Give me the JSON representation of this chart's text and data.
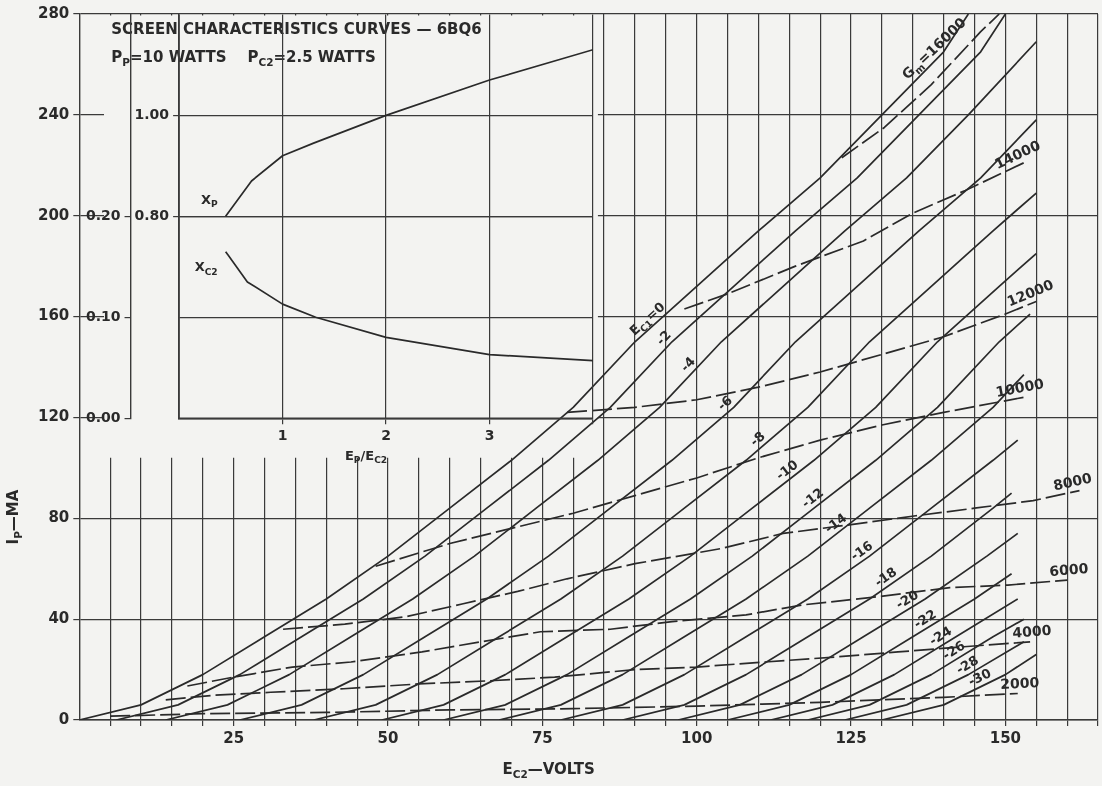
{
  "chart_data": [
    {
      "type": "line",
      "title": "SCREEN CHARACTERISTICS CURVES — 6BQ6",
      "subtitle": "P$_{P}$=10 WATTS    P$_{C2}$=2.5 WATTS",
      "xlabel": "E$_{C2}$—VOLTS",
      "ylabel": "I$_{P}$—MA",
      "xlim": [
        0,
        165
      ],
      "ylim": [
        0,
        280
      ],
      "xticks": [
        {
          "value": 5,
          "label": null
        },
        {
          "value": 10,
          "label": null
        },
        {
          "value": 15,
          "label": null
        },
        {
          "value": 20,
          "label": null
        },
        25,
        {
          "value": 30,
          "label": null
        },
        {
          "value": 35,
          "label": null
        },
        {
          "value": 40,
          "label": null
        },
        {
          "value": 45,
          "label": null
        },
        50,
        {
          "value": 55,
          "label": null
        },
        {
          "value": 60,
          "label": null
        },
        {
          "value": 65,
          "label": null
        },
        {
          "value": 70,
          "label": null
        },
        75,
        {
          "value": 80,
          "label": null
        },
        {
          "value": 85,
          "label": null
        },
        {
          "value": 90,
          "label": null
        },
        {
          "value": 95,
          "label": null
        },
        100,
        {
          "value": 105,
          "label": null
        },
        {
          "value": 110,
          "label": null
        },
        {
          "value": 115,
          "label": null
        },
        {
          "value": 120,
          "label": null
        },
        125,
        {
          "value": 130,
          "label": null
        },
        {
          "value": 135,
          "label": null
        },
        {
          "value": 140,
          "label": null
        },
        {
          "value": 145,
          "label": null
        },
        150,
        {
          "value": 155,
          "label": null
        },
        {
          "value": 160,
          "label": null
        },
        {
          "value": 165,
          "label": null
        }
      ],
      "yticks": [
        0,
        40,
        80,
        120,
        160,
        200,
        240,
        280
      ],
      "grid": true,
      "legend": false,
      "marker": "none",
      "series": [
        {
          "name": "E$_{C1}$=0",
          "color": "#2a2a2a",
          "x": [
            0,
            10,
            20,
            30,
            40,
            50,
            60,
            70,
            80,
            90,
            100,
            110,
            120,
            130,
            140,
            144
          ],
          "values": [
            0,
            6,
            18,
            33,
            48,
            65,
            84,
            103,
            124,
            150,
            172,
            194,
            215,
            240,
            265,
            280
          ]
        },
        {
          "name": "-2",
          "color": "#2a2a2a",
          "x": [
            6,
            16,
            26,
            36,
            46,
            56,
            66,
            76,
            86,
            96,
            106,
            116,
            126,
            136,
            146,
            150
          ],
          "values": [
            0,
            6,
            18,
            33,
            48,
            65,
            84,
            103,
            124,
            150,
            172,
            194,
            215,
            240,
            265,
            280
          ]
        },
        {
          "name": "-4",
          "color": "#2a2a2a",
          "x": [
            14,
            24,
            34,
            44,
            54,
            64,
            74,
            84,
            94,
            104,
            114,
            124,
            134,
            144,
            155
          ],
          "values": [
            0,
            6,
            18,
            33,
            48,
            65,
            84,
            103,
            124,
            150,
            172,
            194,
            215,
            240,
            269
          ]
        },
        {
          "name": "-6",
          "color": "#2a2a2a",
          "x": [
            26,
            36,
            46,
            56,
            66,
            76,
            86,
            96,
            106,
            116,
            126,
            136,
            146,
            155
          ],
          "values": [
            0,
            6,
            18,
            33,
            48,
            65,
            84,
            103,
            124,
            150,
            172,
            194,
            215,
            238
          ]
        },
        {
          "name": "-8",
          "color": "#2a2a2a",
          "x": [
            38,
            48,
            58,
            68,
            78,
            88,
            98,
            108,
            118,
            128,
            138,
            148,
            155
          ],
          "values": [
            0,
            6,
            18,
            33,
            48,
            65,
            84,
            103,
            124,
            150,
            172,
            194,
            209
          ]
        },
        {
          "name": "-10",
          "color": "#2a2a2a",
          "x": [
            49,
            59,
            69,
            79,
            89,
            99,
            109,
            119,
            129,
            139,
            149,
            155
          ],
          "values": [
            0,
            6,
            18,
            33,
            48,
            65,
            84,
            103,
            124,
            150,
            172,
            185
          ]
        },
        {
          "name": "-12",
          "color": "#2a2a2a",
          "x": [
            59,
            69,
            79,
            89,
            99,
            109,
            119,
            129,
            139,
            149,
            154
          ],
          "values": [
            0,
            6,
            18,
            33,
            48,
            65,
            84,
            103,
            124,
            150,
            161
          ]
        },
        {
          "name": "-14",
          "color": "#2a2a2a",
          "x": [
            68,
            78,
            88,
            98,
            108,
            118,
            128,
            138,
            148,
            153
          ],
          "values": [
            0,
            6,
            18,
            33,
            48,
            65,
            84,
            103,
            124,
            137
          ]
        },
        {
          "name": "-16",
          "color": "#2a2a2a",
          "x": [
            78,
            88,
            98,
            108,
            118,
            128,
            138,
            148,
            152
          ],
          "values": [
            0,
            6,
            18,
            33,
            48,
            65,
            84,
            103,
            111
          ]
        },
        {
          "name": "-18",
          "color": "#2a2a2a",
          "x": [
            88,
            98,
            108,
            118,
            128,
            138,
            148,
            151
          ],
          "values": [
            0,
            6,
            18,
            33,
            48,
            65,
            84,
            90
          ]
        },
        {
          "name": "-20",
          "color": "#2a2a2a",
          "x": [
            97,
            107,
            117,
            127,
            137,
            147,
            152
          ],
          "values": [
            0,
            6,
            18,
            33,
            48,
            65,
            74
          ]
        },
        {
          "name": "-22",
          "color": "#2a2a2a",
          "x": [
            105,
            115,
            125,
            135,
            145,
            151
          ],
          "values": [
            0,
            6,
            18,
            33,
            48,
            58
          ]
        },
        {
          "name": "-24",
          "color": "#2a2a2a",
          "x": [
            112,
            122,
            132,
            142,
            152
          ],
          "values": [
            0,
            6,
            18,
            33,
            48
          ]
        },
        {
          "name": "-26",
          "color": "#2a2a2a",
          "x": [
            118,
            128,
            138,
            148,
            153
          ],
          "values": [
            0,
            6,
            18,
            33,
            40
          ]
        },
        {
          "name": "-28",
          "color": "#2a2a2a",
          "x": [
            124,
            134,
            144,
            153
          ],
          "values": [
            0,
            6,
            18,
            31
          ]
        },
        {
          "name": "-30",
          "color": "#2a2a2a",
          "x": [
            130,
            140,
            150,
            155
          ],
          "values": [
            0,
            6,
            18,
            26
          ]
        },
        {
          "name": "G$_{m}$=16000",
          "color": "#2a2a2a",
          "line_style": "dashed",
          "x": [
            123.5,
            130.4,
            138,
            146,
            149
          ],
          "values": [
            223,
            235,
            252,
            273,
            280
          ]
        },
        {
          "name": "14000",
          "color": "#2a2a2a",
          "line_style": "dashed",
          "x": [
            98,
            105,
            116,
            127,
            135,
            143.5,
            153
          ],
          "values": [
            163,
            169,
            180,
            190,
            201,
            210,
            221
          ]
        },
        {
          "name": "12000",
          "color": "#2a2a2a",
          "line_style": "dashed",
          "x": [
            79,
            90,
            100,
            110,
            120,
            130,
            140,
            150,
            155
          ],
          "values": [
            122,
            124,
            127,
            132,
            138,
            145,
            152,
            161,
            166
          ]
        },
        {
          "name": "10000",
          "color": "#2a2a2a",
          "line_style": "dashed",
          "x": [
            48,
            60,
            70,
            80,
            90,
            100,
            110,
            120,
            130,
            140,
            153
          ],
          "values": [
            61,
            70,
            76,
            82,
            89,
            96,
            104,
            111,
            117,
            122,
            128
          ]
        },
        {
          "name": "8000",
          "color": "#2a2a2a",
          "line_style": "dashed",
          "x": [
            33,
            43,
            53,
            62,
            71,
            79,
            90,
            104,
            114,
            125,
            135.5,
            145,
            154.5,
            162
          ],
          "values": [
            36,
            38,
            41,
            46,
            51,
            56,
            62,
            68,
            74,
            77.5,
            81,
            84,
            87,
            91
          ]
        },
        {
          "name": "6000",
          "color": "#2a2a2a",
          "line_style": "dashed",
          "x": [
            17.5,
            25,
            34.5,
            44,
            55.5,
            65,
            74.7,
            86,
            96,
            108,
            117,
            128,
            141,
            150.4,
            160
          ],
          "values": [
            13.5,
            17,
            21,
            23,
            27,
            31,
            35,
            36,
            39,
            41.7,
            45.6,
            48.5,
            52.5,
            53.5,
            55.5
          ]
        },
        {
          "name": "4000",
          "color": "#2a2a2a",
          "line_style": "dashed",
          "x": [
            14,
            21.7,
            31,
            42.8,
            55,
            66,
            77,
            90,
            100,
            111,
            122.5,
            132.6,
            143,
            154
          ],
          "values": [
            8,
            9.8,
            11,
            12.4,
            14.3,
            15.5,
            17,
            20,
            21,
            23,
            25,
            27,
            29,
            31
          ]
        },
        {
          "name": "2000",
          "color": "#2a2a2a",
          "line_style": "dashed",
          "x": [
            5,
            20,
            40,
            60,
            80,
            100,
            120,
            140,
            152
          ],
          "values": [
            1.5,
            2.5,
            3,
            4,
            4.5,
            5.5,
            7,
            9,
            10.5
          ]
        }
      ]
    },
    {
      "type": "line",
      "xlabel": "E$_{P}$/E$_{C2}$",
      "xlim": [
        0,
        4
      ],
      "xticks": [
        1,
        2,
        3,
        {
          "value": 4,
          "label": null
        }
      ],
      "ylim": [
        0.4,
        1.2
      ],
      "yticks": [
        {
          "value": 0.8,
          "label": "0.80"
        },
        {
          "value": 1,
          "label": "1.00"
        }
      ],
      "y2lim": [
        0,
        0.4
      ],
      "y2ticks": [
        {
          "value": 0,
          "label": "0.00"
        },
        {
          "value": 0.1,
          "label": "0.10"
        },
        {
          "value": 0.2,
          "label": "0.20"
        }
      ],
      "grid": true,
      "legend": false,
      "marker": "none",
      "series": [
        {
          "name": "X$_{P}$",
          "color": "#2a2a2a",
          "x": [
            0.45,
            0.7,
            1,
            1.3,
            2,
            3,
            4
          ],
          "values": [
            0.8,
            0.87,
            0.92,
            0.945,
            1,
            1.07,
            1.13
          ]
        },
        {
          "name": "X$_{C2}$",
          "color": "#2a2a2a",
          "axis": "y2",
          "x": [
            0.45,
            0.66,
            1,
            1.32,
            2,
            3,
            4
          ],
          "values": [
            0.165,
            0.135,
            0.113,
            0.1,
            0.08,
            0.063,
            0.057
          ]
        }
      ]
    }
  ]
}
